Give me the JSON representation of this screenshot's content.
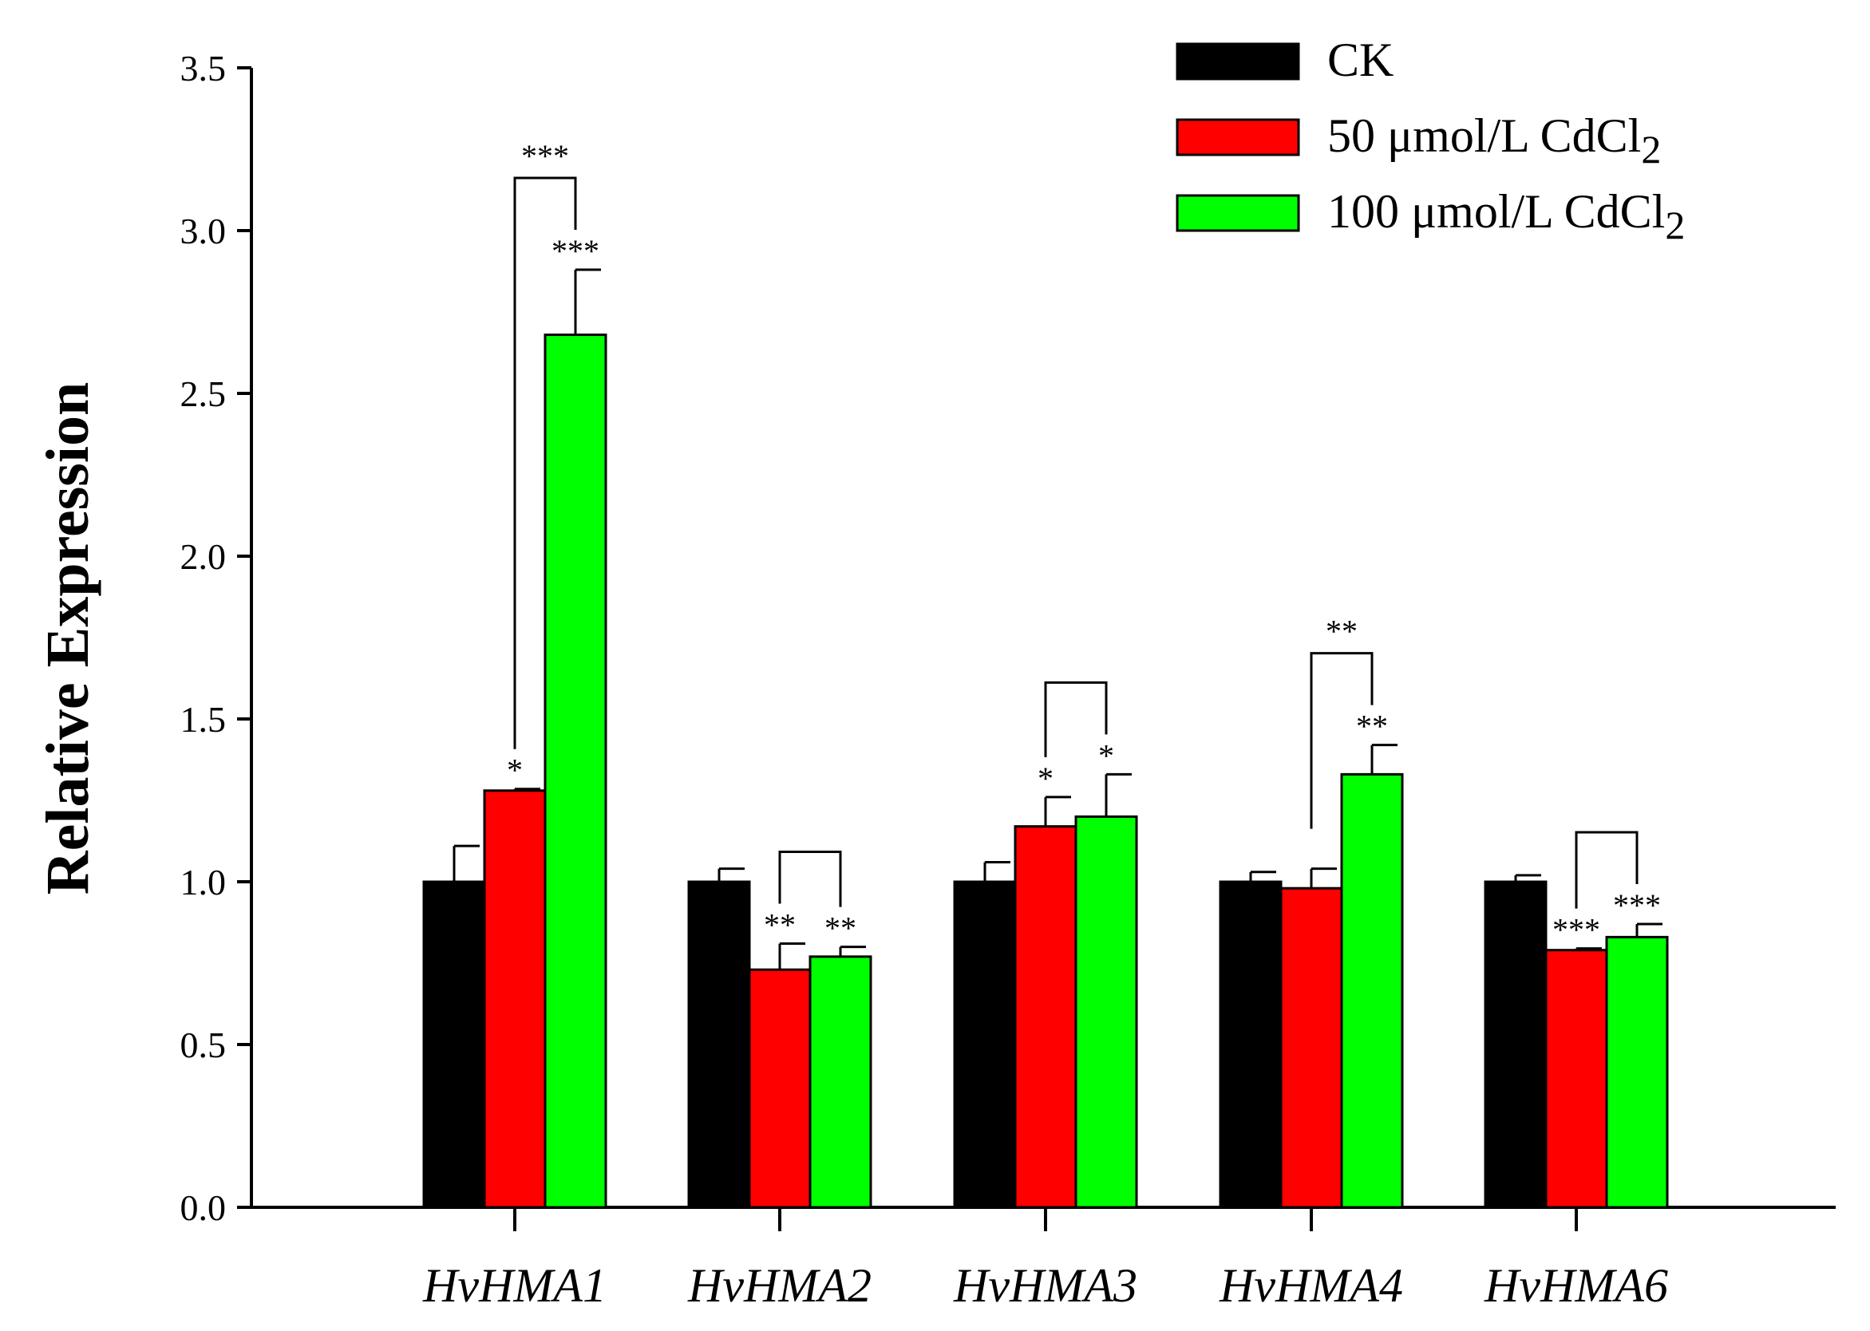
{
  "chart_data": {
    "type": "bar",
    "title": "",
    "xlabel": "",
    "ylabel": "Relative Expression",
    "ylim": [
      0,
      3.5
    ],
    "yticks": [
      "0.0",
      "0.5",
      "1.0",
      "1.5",
      "2.0",
      "2.5",
      "3.0",
      "3.5"
    ],
    "grid": false,
    "legend_position": "top-right",
    "categories": [
      "HvHMA1",
      "HvHMA2",
      "HvHMA3",
      "HvHMA4",
      "HvHMA6"
    ],
    "series": [
      {
        "name": "CK",
        "color": "#000000",
        "values": [
          1.0,
          1.0,
          1.0,
          1.0,
          1.0
        ],
        "errors": [
          0.11,
          0.04,
          0.06,
          0.03,
          0.02
        ],
        "sig": [
          "",
          "",
          "",
          "",
          ""
        ]
      },
      {
        "name": "50 μmol/L CdCl₂",
        "label_main": "50 μmol/L CdCl",
        "label_sub": "2",
        "color": "#ff0000",
        "values": [
          1.28,
          0.73,
          1.17,
          0.98,
          0.79
        ],
        "errors": [
          0.005,
          0.08,
          0.09,
          0.06,
          0.005
        ],
        "sig": [
          "*",
          "**",
          "*",
          "",
          "***"
        ]
      },
      {
        "name": "100 μmol/L CdCl₂",
        "label_main": "100 μmol/L CdCl",
        "label_sub": "2",
        "color": "#00ff00",
        "values": [
          2.68,
          0.77,
          1.2,
          1.33,
          0.83
        ],
        "errors": [
          0.2,
          0.03,
          0.13,
          0.09,
          0.04
        ],
        "sig": [
          "***",
          "**",
          "*",
          "**",
          "***"
        ]
      }
    ],
    "comparisons": [
      {
        "category": 0,
        "label": "***"
      },
      {
        "category": 1,
        "label": ""
      },
      {
        "category": 2,
        "label": ""
      },
      {
        "category": 3,
        "label": "**"
      },
      {
        "category": 4,
        "label": ""
      }
    ]
  }
}
